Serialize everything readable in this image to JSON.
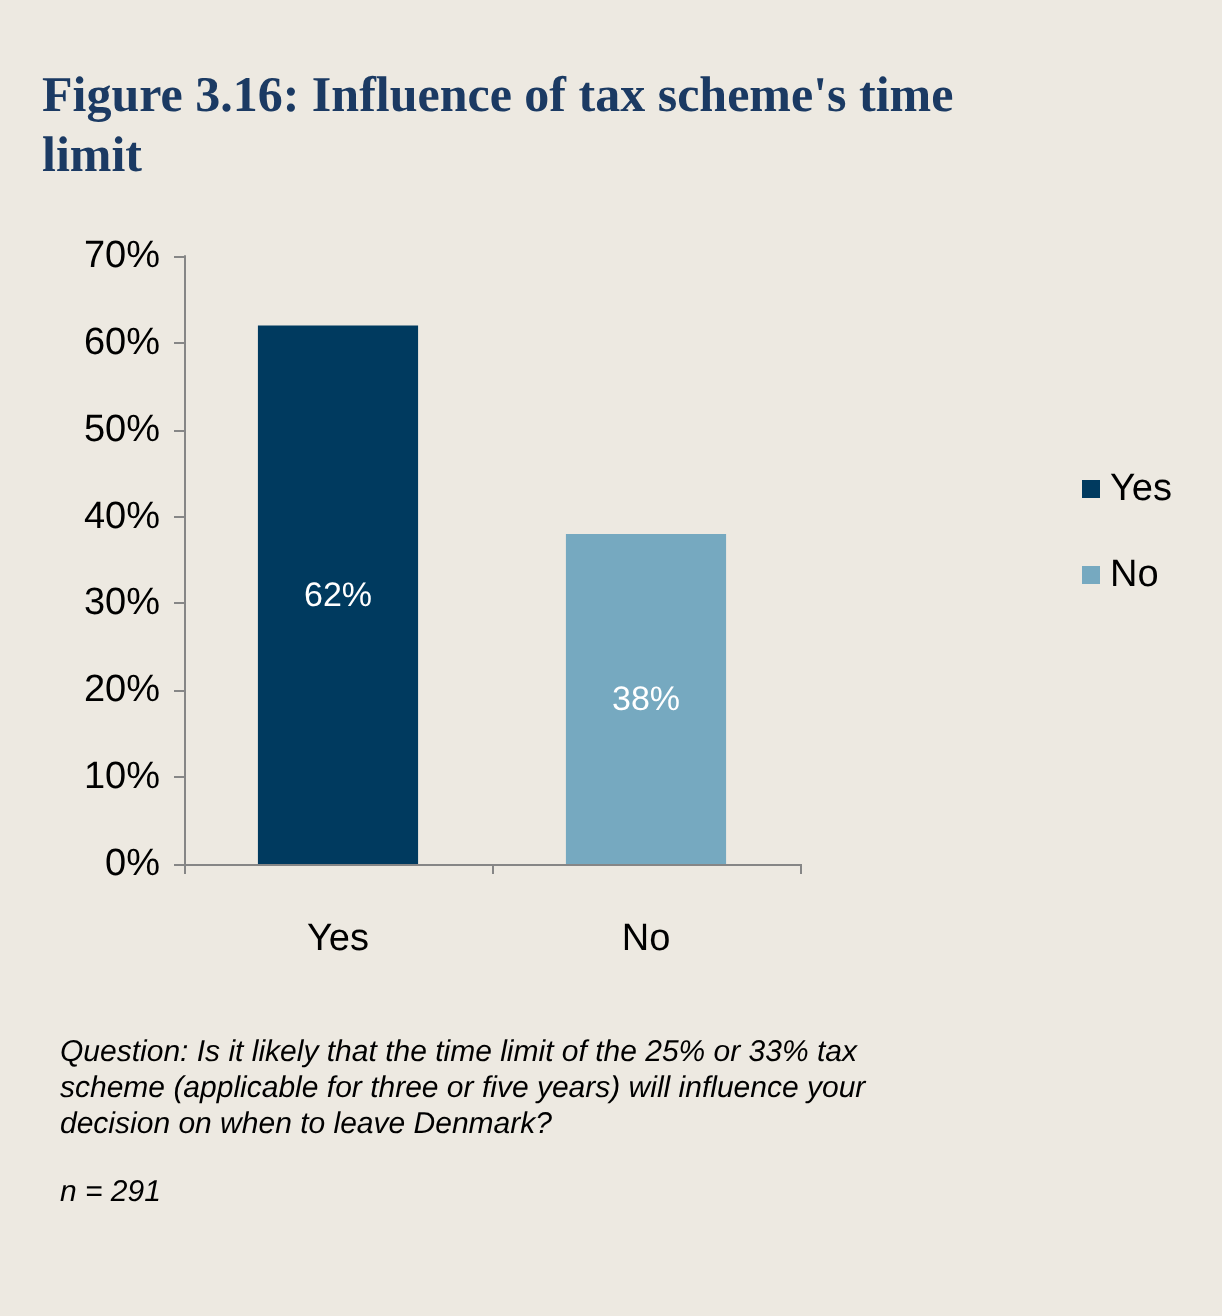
{
  "chart_data": {
    "type": "bar",
    "title": "Figure 3.16: Influence of tax scheme's time limit",
    "categories": [
      "Yes",
      "No"
    ],
    "series": [
      {
        "name": "Yes",
        "color": "#003a5f",
        "values": [
          62,
          null
        ],
        "value_labels": [
          "62%",
          null
        ]
      },
      {
        "name": "No",
        "color": "#76a9c0",
        "values": [
          null,
          38
        ],
        "value_labels": [
          null,
          "38%"
        ]
      }
    ],
    "ylim": [
      0,
      70
    ],
    "yticks": [
      {
        "value": 0,
        "label": "0%"
      },
      {
        "value": 10,
        "label": "10%"
      },
      {
        "value": 20,
        "label": "20%"
      },
      {
        "value": 30,
        "label": "30%"
      },
      {
        "value": 40,
        "label": "40%"
      },
      {
        "value": 50,
        "label": "50%"
      },
      {
        "value": 60,
        "label": "60%"
      },
      {
        "value": 70,
        "label": "70%"
      }
    ],
    "grid": false,
    "legend": "right",
    "annotations": [
      "Question: Is it likely that the time limit of the 25% or 33% tax scheme (applicable for three or five years) will influence your decision on when to leave Denmark?",
      "n = 291"
    ]
  }
}
